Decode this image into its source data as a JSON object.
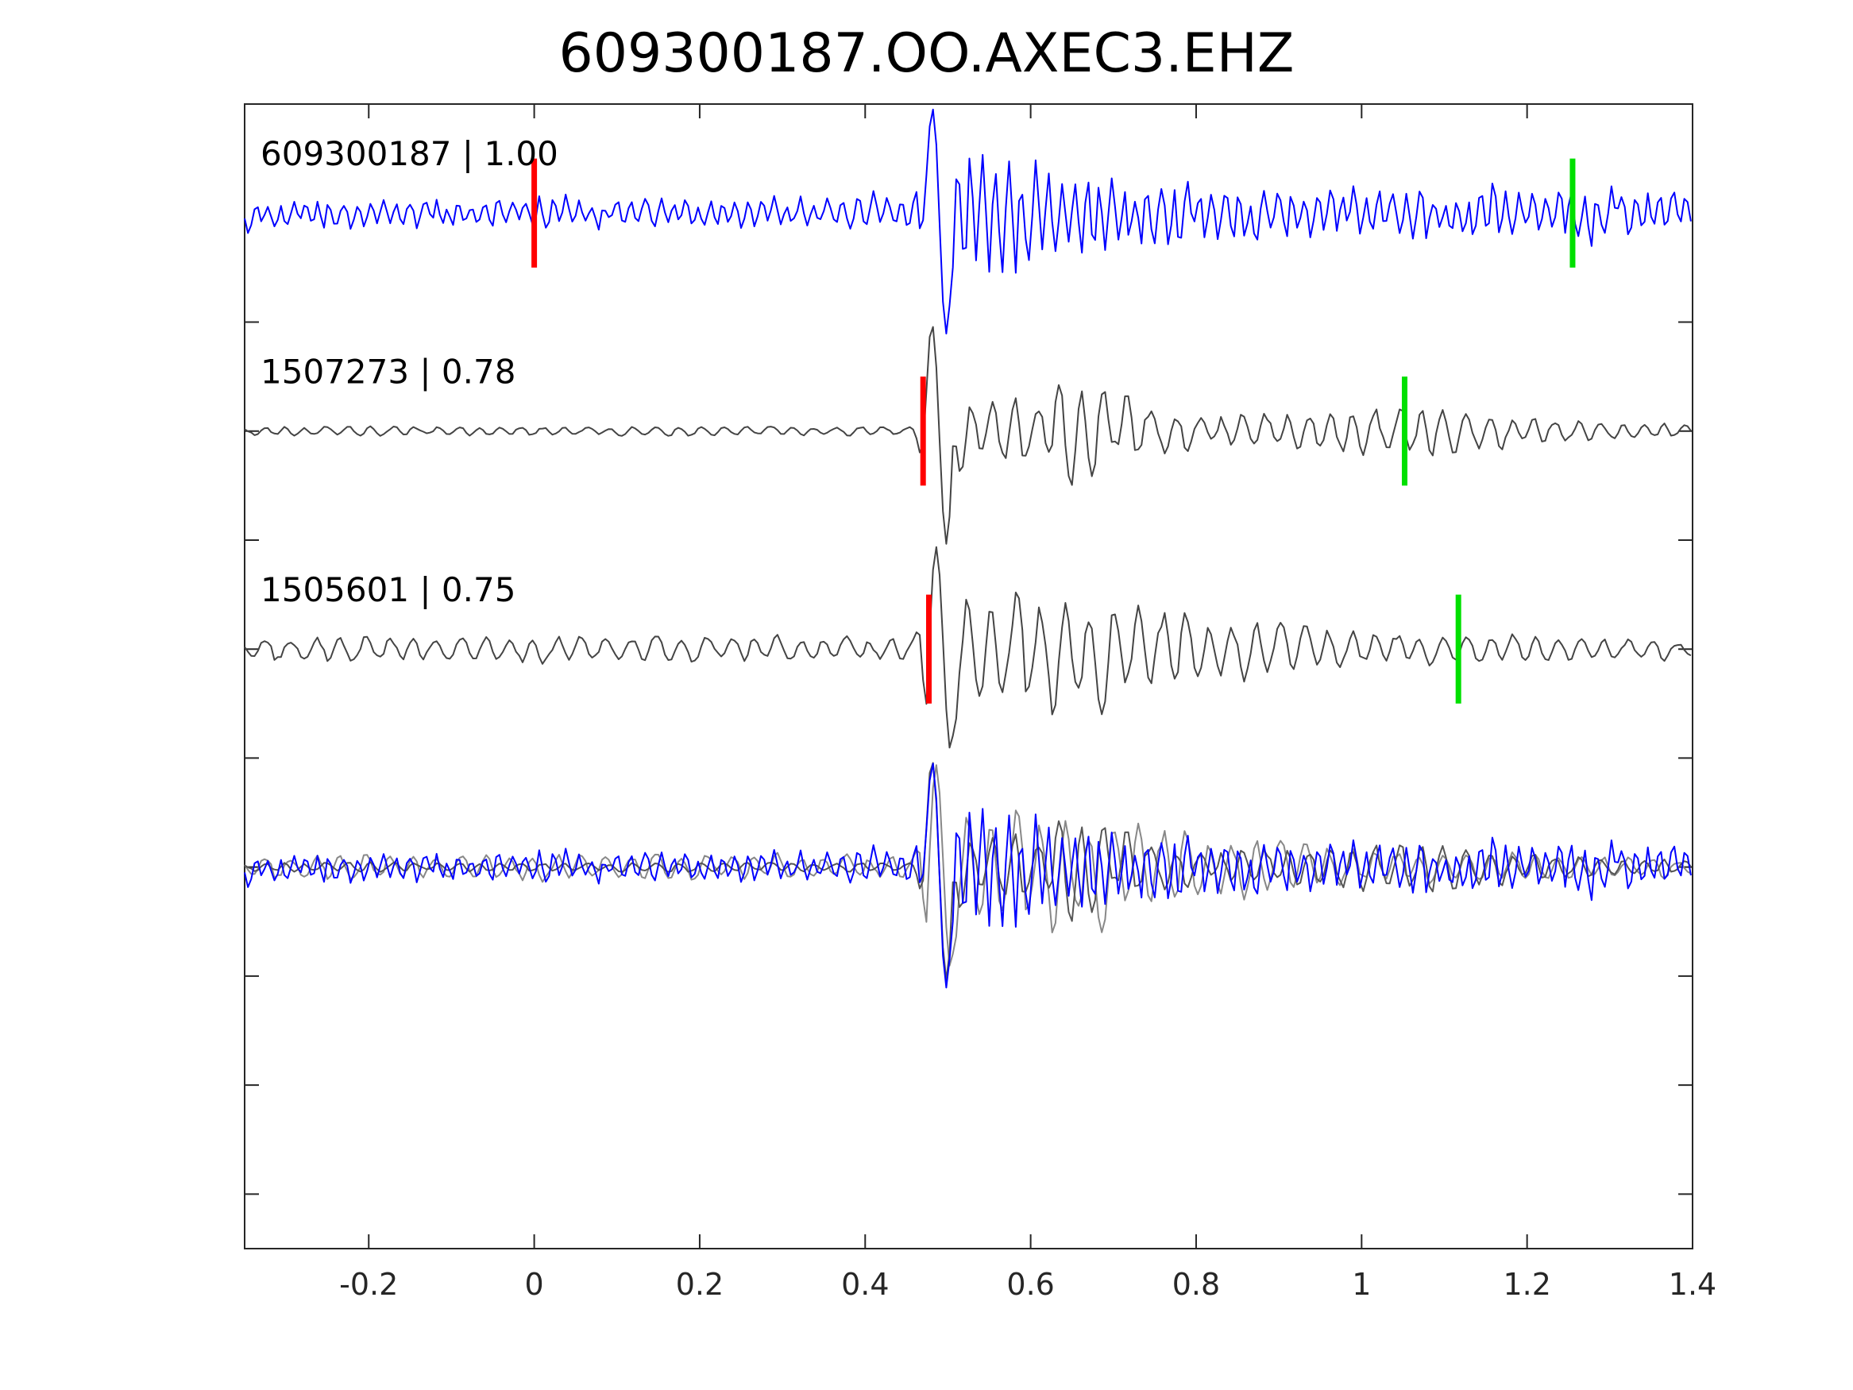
{
  "chart_data": {
    "type": "line",
    "title": "609300187.OO.AXEC3.EHZ",
    "xlabel": "",
    "ylabel": "",
    "xlim": [
      -0.35,
      1.4
    ],
    "xticks": [
      -0.2,
      0,
      0.2,
      0.4,
      0.6,
      0.8,
      1,
      1.2,
      1.4
    ],
    "xtick_labels": [
      "-0.2",
      "0",
      "0.2",
      "0.4",
      "0.6",
      "0.8",
      "1",
      "1.2",
      "1.4"
    ],
    "ylim": [
      -4.75,
      0.5
    ],
    "yticks": [
      -0.5,
      -1.0,
      -1.5,
      -2.0,
      -2.5,
      -3.0,
      -3.5,
      -4.0,
      -4.5
    ],
    "grid": false,
    "traces": [
      {
        "label": "609300187 | 1.00",
        "event_id": "609300187",
        "correlation": 1.0,
        "baseline": 0,
        "color": "#0000ff",
        "picks": [
          {
            "time": 0.0,
            "color": "#ff0000"
          },
          {
            "time": 1.255,
            "color": "#00e000"
          }
        ],
        "envelope": [
          [
            -0.35,
            0.12
          ],
          [
            0.35,
            0.12
          ],
          [
            0.455,
            0.15
          ],
          [
            0.49,
            0.55
          ],
          [
            0.51,
            0.5
          ],
          [
            0.56,
            0.45
          ],
          [
            0.62,
            0.4
          ],
          [
            0.7,
            0.3
          ],
          [
            0.9,
            0.22
          ],
          [
            1.1,
            0.22
          ],
          [
            1.4,
            0.2
          ]
        ],
        "onset": 0.47,
        "period": 0.016,
        "seed": 11
      },
      {
        "label": "1507273 | 0.78",
        "event_id": "1507273",
        "correlation": 0.78,
        "baseline": -1.0,
        "color": "#444444",
        "picks": [
          {
            "time": 0.47,
            "color": "#ff0000"
          },
          {
            "time": 1.052,
            "color": "#00e000"
          }
        ],
        "envelope": [
          [
            -0.35,
            0.03
          ],
          [
            0.46,
            0.03
          ],
          [
            0.475,
            0.45
          ],
          [
            0.5,
            0.5
          ],
          [
            0.53,
            0.2
          ],
          [
            0.6,
            0.22
          ],
          [
            0.65,
            0.42
          ],
          [
            0.68,
            0.3
          ],
          [
            0.8,
            0.1
          ],
          [
            1.0,
            0.15
          ],
          [
            1.1,
            0.18
          ],
          [
            1.2,
            0.08
          ],
          [
            1.4,
            0.04
          ]
        ],
        "onset": 0.47,
        "period": 0.028,
        "seed": 23
      },
      {
        "label": "1505601 | 0.75",
        "event_id": "1505601",
        "correlation": 0.75,
        "baseline": -2.0,
        "color": "#444444",
        "picks": [
          {
            "time": 0.477,
            "color": "#ff0000"
          },
          {
            "time": 1.117,
            "color": "#00e000"
          }
        ],
        "envelope": [
          [
            -0.35,
            0.08
          ],
          [
            0.46,
            0.08
          ],
          [
            0.475,
            0.45
          ],
          [
            0.5,
            0.45
          ],
          [
            0.55,
            0.3
          ],
          [
            0.6,
            0.38
          ],
          [
            0.7,
            0.32
          ],
          [
            0.8,
            0.22
          ],
          [
            0.9,
            0.15
          ],
          [
            1.1,
            0.1
          ],
          [
            1.4,
            0.06
          ]
        ],
        "onset": 0.475,
        "period": 0.03,
        "seed": 37
      },
      {
        "label": "",
        "overlay": true,
        "baseline": -3.0,
        "members": [
          0,
          1,
          2
        ],
        "colors": [
          "#0000ff",
          "#555555",
          "#888888"
        ]
      }
    ]
  }
}
